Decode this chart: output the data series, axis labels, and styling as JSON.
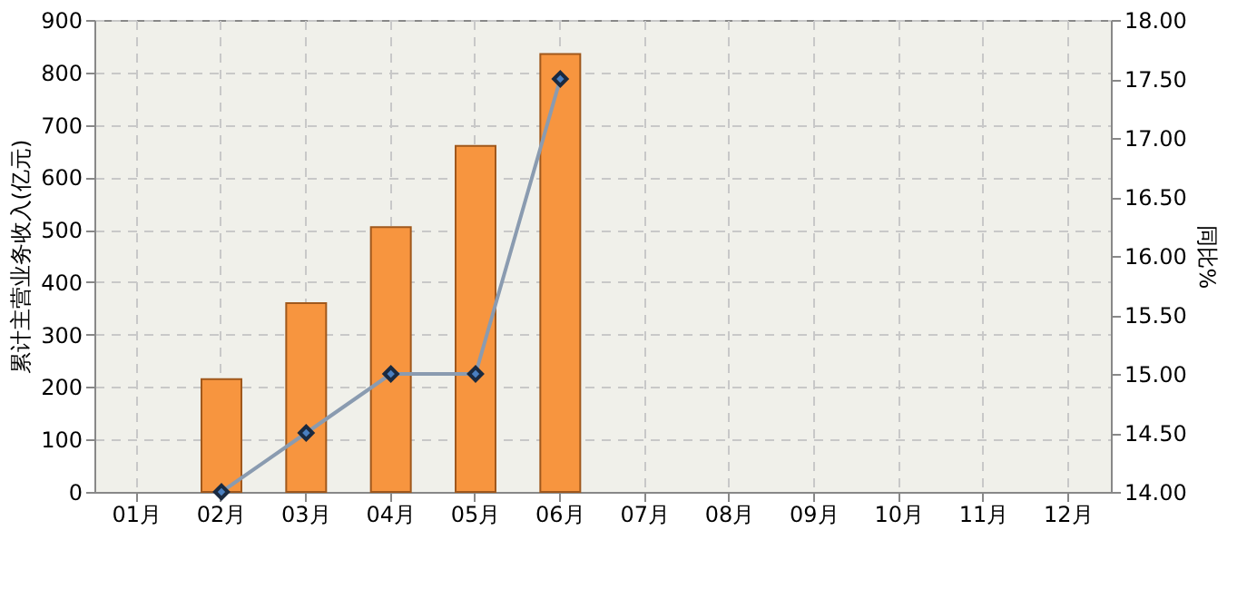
{
  "chart_data": {
    "type": "bar",
    "ylabel": "累计主营业务收入(亿元)",
    "y2label": "同比%",
    "categories": [
      "01月",
      "02月",
      "03月",
      "04月",
      "05月",
      "06月",
      "07月",
      "08月",
      "09月",
      "10月",
      "11月",
      "12月"
    ],
    "series": [
      {
        "color": "#f7953f",
        "values": [
          null,
          215,
          360,
          505,
          660,
          835,
          null,
          null,
          null,
          null,
          null,
          null
        ]
      },
      {
        "type": "line",
        "axis": "y2",
        "color": "#8a9bb0",
        "marker": "diamond",
        "values": [
          null,
          14.0,
          14.5,
          15.0,
          15.0,
          17.5,
          null,
          null,
          null,
          null,
          null,
          null
        ]
      }
    ],
    "ylim": [
      0,
      900
    ],
    "yticks": [
      0,
      100,
      200,
      300,
      400,
      500,
      600,
      700,
      800,
      900
    ],
    "y2lim": [
      14,
      18
    ],
    "y2ticks": [
      {
        "value": 14,
        "label": "14.00"
      },
      {
        "value": 14.5,
        "label": "14.50"
      },
      {
        "value": 15,
        "label": "15.00"
      },
      {
        "value": 15.5,
        "label": "15.50"
      },
      {
        "value": 16,
        "label": "16.00"
      },
      {
        "value": 16.5,
        "label": "16.50"
      },
      {
        "value": 17,
        "label": "17.00"
      },
      {
        "value": 17.5,
        "label": "17.50"
      },
      {
        "value": 18,
        "label": "18.00"
      }
    ],
    "grid": true
  }
}
